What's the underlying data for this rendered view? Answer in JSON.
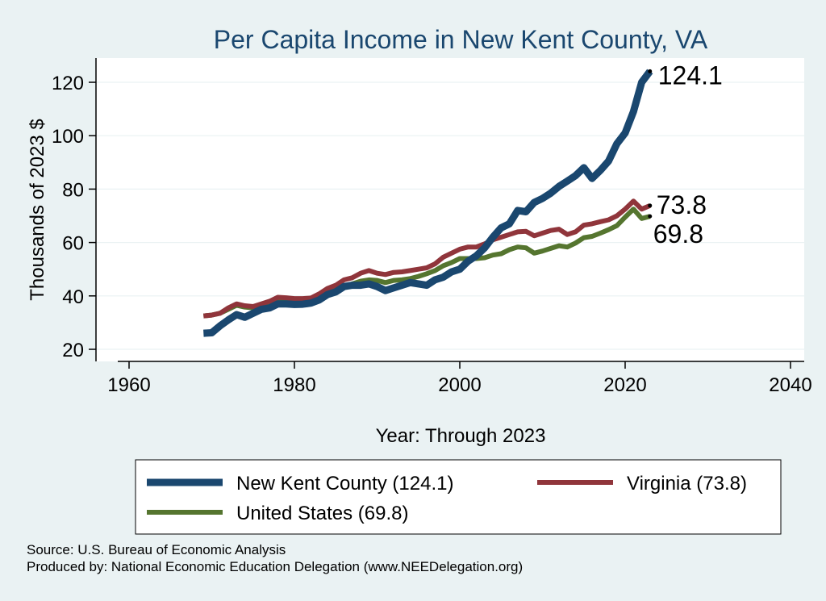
{
  "chart_data": {
    "type": "line",
    "title": "Per Capita Income in New Kent County, VA",
    "xlabel": "Year: Through 2023",
    "ylabel": "Thousands of 2023 $",
    "xlim": [
      1960,
      2040
    ],
    "ylim": [
      20,
      128
    ],
    "xticks": [
      1960,
      1980,
      2000,
      2020,
      2040
    ],
    "yticks": [
      20,
      40,
      60,
      80,
      100,
      120
    ],
    "grid": true,
    "legend_position": "bottom",
    "series": [
      {
        "name": "New Kent County (124.1)",
        "color": "#1a476f",
        "end_label": "124.1",
        "points": [
          [
            1969,
            26
          ],
          [
            1970,
            26.2
          ],
          [
            1971,
            28.8
          ],
          [
            1972,
            31
          ],
          [
            1973,
            33
          ],
          [
            1974,
            32
          ],
          [
            1975,
            33.5
          ],
          [
            1976,
            35
          ],
          [
            1977,
            35.5
          ],
          [
            1978,
            37
          ],
          [
            1979,
            37
          ],
          [
            1980,
            36.8
          ],
          [
            1981,
            36.9
          ],
          [
            1982,
            37.3
          ],
          [
            1983,
            38.5
          ],
          [
            1984,
            40.5
          ],
          [
            1985,
            41.5
          ],
          [
            1986,
            43.5
          ],
          [
            1987,
            44
          ],
          [
            1988,
            44
          ],
          [
            1989,
            44.5
          ],
          [
            1990,
            43.5
          ],
          [
            1991,
            42
          ],
          [
            1992,
            43
          ],
          [
            1993,
            44
          ],
          [
            1994,
            45
          ],
          [
            1995,
            44.5
          ],
          [
            1996,
            44
          ],
          [
            1997,
            46
          ],
          [
            1998,
            47
          ],
          [
            1999,
            49
          ],
          [
            2000,
            50
          ],
          [
            2001,
            53
          ],
          [
            2002,
            55
          ],
          [
            2003,
            58
          ],
          [
            2004,
            62
          ],
          [
            2005,
            65.5
          ],
          [
            2006,
            67
          ],
          [
            2007,
            72
          ],
          [
            2008,
            71.5
          ],
          [
            2009,
            75
          ],
          [
            2010,
            76.5
          ],
          [
            2011,
            78.5
          ],
          [
            2012,
            81
          ],
          [
            2013,
            83
          ],
          [
            2014,
            85
          ],
          [
            2015,
            88
          ],
          [
            2016,
            84
          ],
          [
            2017,
            87
          ],
          [
            2018,
            90.5
          ],
          [
            2019,
            97
          ],
          [
            2020,
            101
          ],
          [
            2021,
            109
          ],
          [
            2022,
            120
          ],
          [
            2023,
            124.1
          ]
        ]
      },
      {
        "name": "Virginia (73.8)",
        "color": "#90353b",
        "end_label": "73.8",
        "points": [
          [
            1969,
            32.5
          ],
          [
            1970,
            32.8
          ],
          [
            1971,
            33.5
          ],
          [
            1972,
            35.5
          ],
          [
            1973,
            37
          ],
          [
            1974,
            36.3
          ],
          [
            1975,
            36
          ],
          [
            1976,
            37
          ],
          [
            1977,
            38
          ],
          [
            1978,
            39.5
          ],
          [
            1979,
            39.3
          ],
          [
            1980,
            39
          ],
          [
            1981,
            39
          ],
          [
            1982,
            39.2
          ],
          [
            1983,
            40.8
          ],
          [
            1984,
            42.8
          ],
          [
            1985,
            44
          ],
          [
            1986,
            46
          ],
          [
            1987,
            46.8
          ],
          [
            1988,
            48.5
          ],
          [
            1989,
            49.5
          ],
          [
            1990,
            48.5
          ],
          [
            1991,
            48
          ],
          [
            1992,
            48.8
          ],
          [
            1993,
            49
          ],
          [
            1994,
            49.5
          ],
          [
            1995,
            50
          ],
          [
            1996,
            50.5
          ],
          [
            1997,
            52
          ],
          [
            1998,
            54.5
          ],
          [
            1999,
            56
          ],
          [
            2000,
            57.5
          ],
          [
            2001,
            58.3
          ],
          [
            2002,
            58.3
          ],
          [
            2003,
            59.5
          ],
          [
            2004,
            61
          ],
          [
            2005,
            62
          ],
          [
            2006,
            63
          ],
          [
            2007,
            64
          ],
          [
            2008,
            64.2
          ],
          [
            2009,
            62.5
          ],
          [
            2010,
            63.5
          ],
          [
            2011,
            64.5
          ],
          [
            2012,
            65
          ],
          [
            2013,
            63
          ],
          [
            2014,
            64
          ],
          [
            2015,
            66.5
          ],
          [
            2016,
            67
          ],
          [
            2017,
            67.8
          ],
          [
            2018,
            68.5
          ],
          [
            2019,
            70
          ],
          [
            2020,
            72.5
          ],
          [
            2021,
            75.5
          ],
          [
            2022,
            72.5
          ],
          [
            2023,
            73.8
          ]
        ]
      },
      {
        "name": "United States (69.8)",
        "color": "#55752f",
        "end_label": "69.8",
        "points": [
          [
            1969,
            32.5
          ],
          [
            1970,
            32.8
          ],
          [
            1971,
            33.5
          ],
          [
            1972,
            35
          ],
          [
            1973,
            36.5
          ],
          [
            1974,
            35.8
          ],
          [
            1975,
            35.5
          ],
          [
            1976,
            36.5
          ],
          [
            1977,
            37.5
          ],
          [
            1978,
            38.8
          ],
          [
            1979,
            38.8
          ],
          [
            1980,
            38
          ],
          [
            1981,
            38.2
          ],
          [
            1982,
            38.2
          ],
          [
            1983,
            39.3
          ],
          [
            1984,
            41.5
          ],
          [
            1985,
            42.5
          ],
          [
            1986,
            43.5
          ],
          [
            1987,
            44.5
          ],
          [
            1988,
            45.5
          ],
          [
            1989,
            46
          ],
          [
            1990,
            45.8
          ],
          [
            1991,
            45
          ],
          [
            1992,
            45.8
          ],
          [
            1993,
            46
          ],
          [
            1994,
            46.5
          ],
          [
            1995,
            47.3
          ],
          [
            1996,
            48.3
          ],
          [
            1997,
            49.5
          ],
          [
            1998,
            51.3
          ],
          [
            1999,
            52.5
          ],
          [
            2000,
            54
          ],
          [
            2001,
            54
          ],
          [
            2002,
            54
          ],
          [
            2003,
            54.3
          ],
          [
            2004,
            55.3
          ],
          [
            2005,
            55.8
          ],
          [
            2006,
            57.3
          ],
          [
            2007,
            58.3
          ],
          [
            2008,
            58
          ],
          [
            2009,
            56
          ],
          [
            2010,
            56.8
          ],
          [
            2011,
            57.8
          ],
          [
            2012,
            58.8
          ],
          [
            2013,
            58.3
          ],
          [
            2014,
            59.8
          ],
          [
            2015,
            61.8
          ],
          [
            2016,
            62.3
          ],
          [
            2017,
            63.5
          ],
          [
            2018,
            64.8
          ],
          [
            2019,
            66.3
          ],
          [
            2020,
            69.5
          ],
          [
            2021,
            72.5
          ],
          [
            2022,
            69
          ],
          [
            2023,
            69.8
          ]
        ]
      }
    ]
  },
  "notes": {
    "source": "Source: U.S. Bureau of Economic Analysis",
    "produced_by": "Produced by: National Economic Education Delegation (www.NEEDelegation.org)"
  }
}
